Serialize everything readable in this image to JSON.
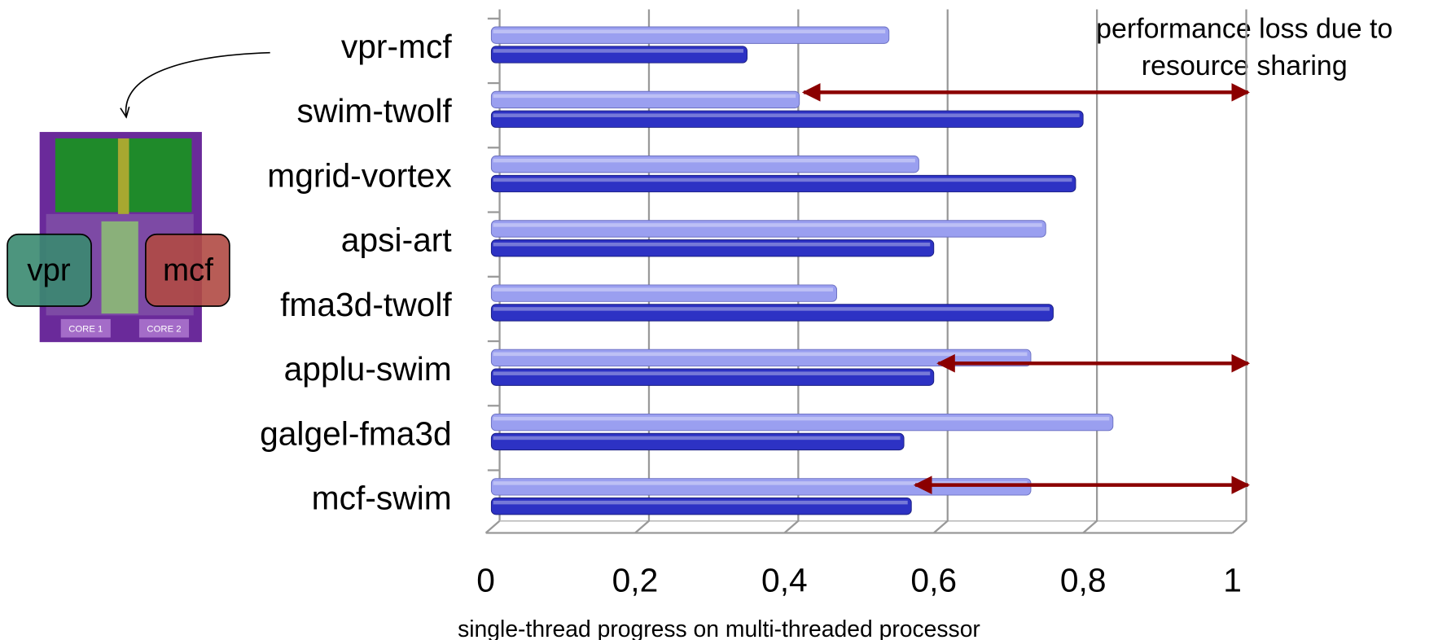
{
  "chart_data": {
    "type": "bar",
    "orientation": "horizontal",
    "categories": [
      "vpr-mcf",
      "swim-twolf",
      "mgrid-vortex",
      "apsi-art",
      "fma3d-twolf",
      "applu-swim",
      "galgel-fma3d",
      "mcf-swim"
    ],
    "series": [
      {
        "color": "#9a9ff0",
        "values": [
          0.54,
          0.42,
          0.58,
          0.75,
          0.47,
          0.73,
          0.84,
          0.73
        ]
      },
      {
        "color": "#2d32c4",
        "values": [
          0.35,
          0.8,
          0.79,
          0.6,
          0.76,
          0.6,
          0.56,
          0.57
        ]
      }
    ],
    "xlim": [
      0,
      1
    ],
    "xticks": [
      0,
      {
        "value": 0.2,
        "label": "0,2"
      },
      {
        "value": 0.4,
        "label": "0,4"
      },
      {
        "value": 0.6,
        "label": "0,6"
      },
      {
        "value": 0.8,
        "label": "0,8"
      },
      1
    ],
    "xlabel": "single-thread progress on multi-threaded processor",
    "annotation": [
      "performance loss due to",
      "resource sharing"
    ],
    "grid": true
  },
  "figure": {
    "labels": [
      "vpr",
      "mcf",
      "CORE 1",
      "CORE 2"
    ]
  }
}
